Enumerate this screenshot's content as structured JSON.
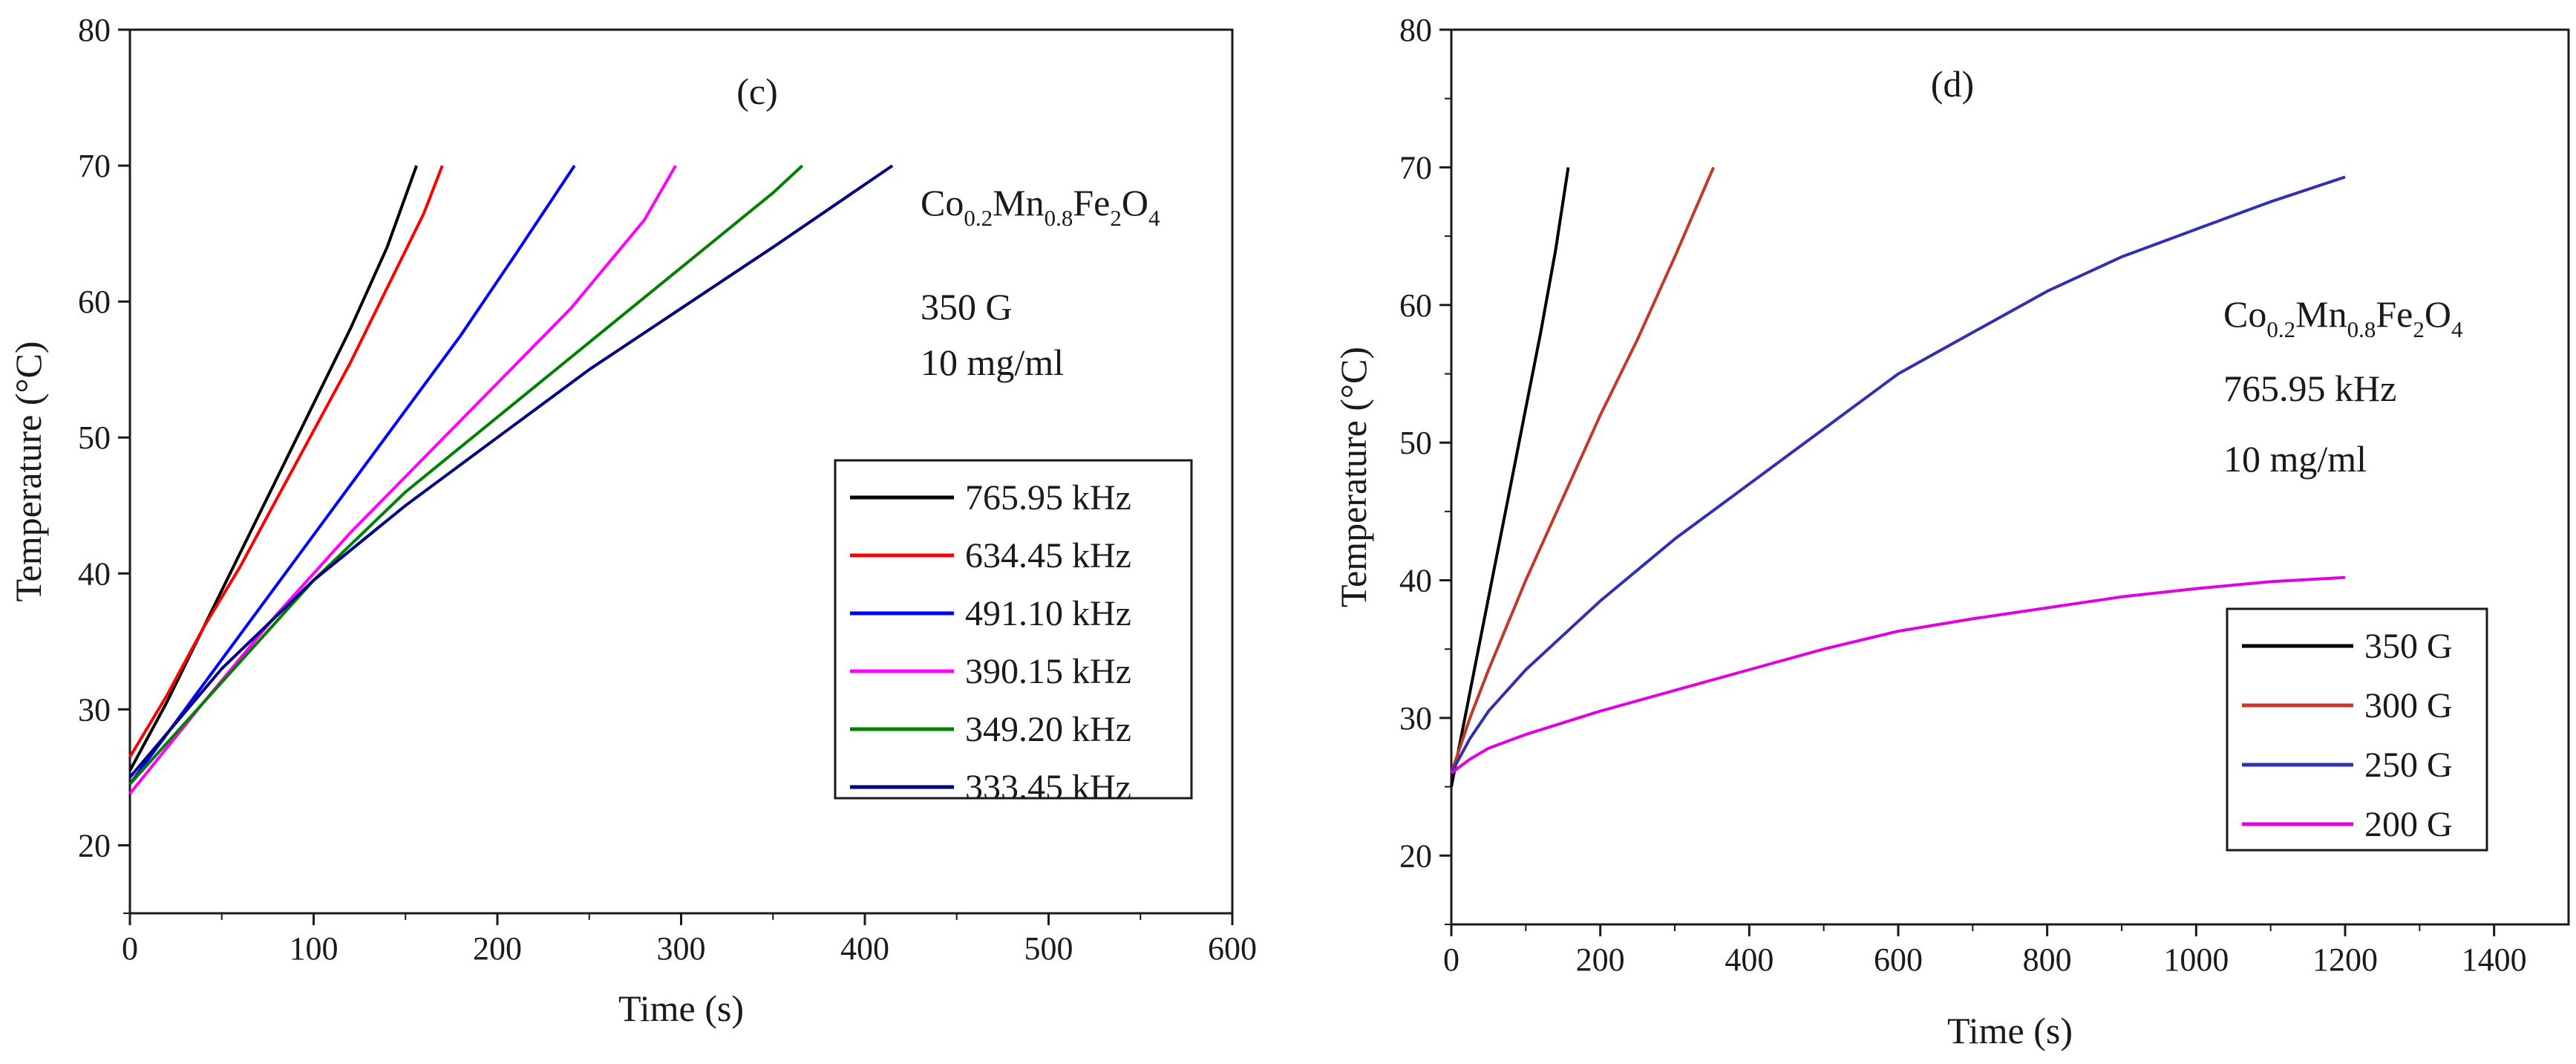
{
  "chart_data": [
    {
      "type": "line",
      "panel_label": "(c)",
      "xlabel": "Time (s)",
      "ylabel": "Temperature (°C)",
      "xlim": [
        0,
        600
      ],
      "ylim": [
        15,
        80
      ],
      "xticks": [
        0,
        100,
        200,
        300,
        400,
        500,
        600
      ],
      "yticks": [
        20,
        30,
        40,
        50,
        60,
        70,
        80
      ],
      "annotation": {
        "formula": [
          {
            "text": "Co",
            "sub": false
          },
          {
            "text": "0.2",
            "sub": true
          },
          {
            "text": "Mn",
            "sub": false
          },
          {
            "text": "0.8",
            "sub": true
          },
          {
            "text": "Fe",
            "sub": false
          },
          {
            "text": "2",
            "sub": true
          },
          {
            "text": "O",
            "sub": false
          },
          {
            "text": "4",
            "sub": true
          }
        ],
        "lines": [
          "350 G",
          "10 mg/ml"
        ]
      },
      "legend_position": "right",
      "series": [
        {
          "name": "765.95 kHz",
          "color": "#000000",
          "x": [
            0,
            20,
            40,
            60,
            80,
            100,
            120,
            140,
            156
          ],
          "y": [
            25.5,
            30.5,
            36,
            41.5,
            47,
            52.5,
            58,
            64,
            70
          ]
        },
        {
          "name": "634.45 kHz",
          "color": "#ff0000",
          "x": [
            0,
            20,
            40,
            60,
            80,
            100,
            120,
            140,
            160,
            170
          ],
          "y": [
            26.5,
            31,
            36,
            40.5,
            45.5,
            50.5,
            55.5,
            61,
            66.5,
            70
          ]
        },
        {
          "name": "491.10 kHz",
          "color": "#0000ff",
          "x": [
            0,
            30,
            60,
            90,
            120,
            150,
            180,
            210,
            242
          ],
          "y": [
            24.5,
            30,
            35.5,
            41,
            46.5,
            52,
            57.5,
            63.5,
            70
          ]
        },
        {
          "name": "390.15 kHz",
          "color": "#ff00ff",
          "x": [
            0,
            40,
            80,
            120,
            160,
            200,
            240,
            280,
            297
          ],
          "y": [
            23.8,
            30.5,
            37,
            43,
            48.5,
            54,
            59.5,
            66,
            70
          ]
        },
        {
          "name": "349.20 kHz",
          "color": "#008000",
          "x": [
            0,
            50,
            100,
            150,
            200,
            250,
            300,
            350,
            366
          ],
          "y": [
            24.5,
            32,
            39.5,
            46,
            51.5,
            57,
            62.5,
            68,
            70
          ]
        },
        {
          "name": "333.45 kHz",
          "color": "#000080",
          "x": [
            0,
            50,
            100,
            150,
            200,
            250,
            300,
            350,
            415
          ],
          "y": [
            25,
            33,
            39.5,
            45,
            50,
            55,
            59.5,
            64,
            70
          ]
        }
      ]
    },
    {
      "type": "line",
      "panel_label": "(d)",
      "xlabel": "Time (s)",
      "ylabel": "Temperature (°C)",
      "xlim": [
        0,
        1500
      ],
      "ylim": [
        15,
        80
      ],
      "xticks": [
        0,
        200,
        400,
        600,
        800,
        1000,
        1200,
        1400
      ],
      "yticks": [
        20,
        30,
        40,
        50,
        60,
        70,
        80
      ],
      "annotation": {
        "formula": [
          {
            "text": "Co",
            "sub": false
          },
          {
            "text": "0.2",
            "sub": true
          },
          {
            "text": "Mn",
            "sub": false
          },
          {
            "text": "0.8",
            "sub": true
          },
          {
            "text": "Fe",
            "sub": false
          },
          {
            "text": "2",
            "sub": true
          },
          {
            "text": "O",
            "sub": false
          },
          {
            "text": "4",
            "sub": true
          }
        ],
        "lines": [
          "765.95 kHz",
          "10 mg/ml"
        ]
      },
      "legend_position": "bottom-right",
      "series": [
        {
          "name": "350 G",
          "color": "#000000",
          "x": [
            0,
            20,
            40,
            60,
            80,
            100,
            120,
            140,
            157
          ],
          "y": [
            25,
            30.5,
            36,
            41.5,
            47,
            52.5,
            58,
            64,
            70
          ]
        },
        {
          "name": "300 G",
          "color": "#c0392b",
          "x": [
            0,
            25,
            50,
            100,
            150,
            200,
            250,
            300,
            352
          ],
          "y": [
            26,
            30,
            33.5,
            40,
            46,
            52,
            57.5,
            63.5,
            70
          ]
        },
        {
          "name": "250 G",
          "color": "#3030b0",
          "x": [
            0,
            25,
            50,
            100,
            200,
            300,
            400,
            500,
            600,
            700,
            800,
            900,
            1000,
            1100,
            1200
          ],
          "y": [
            26,
            28.5,
            30.5,
            33.5,
            38.5,
            43,
            47,
            51,
            55,
            58,
            61,
            63.5,
            65.5,
            67.5,
            69.3
          ]
        },
        {
          "name": "200 G",
          "color": "#e000e0",
          "x": [
            0,
            25,
            50,
            100,
            200,
            300,
            400,
            500,
            600,
            700,
            800,
            900,
            1000,
            1100,
            1200
          ],
          "y": [
            26,
            27,
            27.8,
            28.8,
            30.5,
            32,
            33.5,
            35,
            36.3,
            37.2,
            38,
            38.8,
            39.4,
            39.9,
            40.2
          ]
        }
      ]
    }
  ]
}
